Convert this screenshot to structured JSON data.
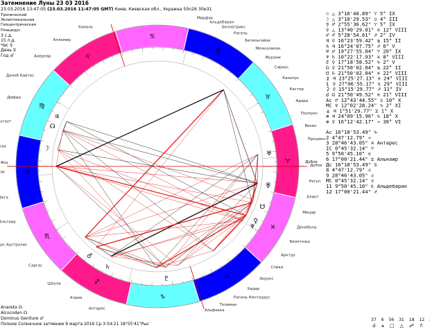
{
  "header": {
    "title": "Затемнение Луны 23 03 2016",
    "datetime_local": "23.03.2016  13:47:05",
    "datetime_gmt": "(23.03.2016  11:47:05 GMT)",
    "location": "Киев, Киевская обл., Украина 50n26  30e31"
  },
  "settings": {
    "lines": [
      "Тропический",
      "Эклиптикальная",
      "Геоцентрическая",
      "Плацидус",
      "3 с.д.",
      "15 л.д.",
      "Час ♀",
      "День ♀",
      "Год ♂"
    ]
  },
  "chart": {
    "sign_colors": [
      "#ff1a8c",
      "#66ffff",
      "#0000ff",
      "#ff66ff",
      "#ff1a8c",
      "#66ffff",
      "#0000ff",
      "#ff66ff",
      "#ff1a8c",
      "#66ffff",
      "#0000ff",
      "#ff66ff"
    ],
    "sign_glyphs": [
      "♈",
      "♉",
      "♊",
      "♋",
      "♌",
      "♍",
      "♎",
      "♏",
      "♐",
      "♑",
      "♒",
      "♓"
    ],
    "axis_left": "Асц",
    "axis_right": "Дубхе"
  },
  "stars_left": [
    "Хамаль",
    "Алламир",
    "Ахернар",
    "Денеб Кайтос",
    "Дифда",
    "Фомальгаут",
    "Анкаа",
    "Пикок",
    "Вега",
    "Альтаир",
    "Каус Аустралис",
    "Саргас",
    "Шаула",
    "Атрия",
    "Антарес"
  ],
  "stars_top": [
    "Мирфак",
    "Альдебаран",
    "Беллатрикс",
    "Ригель",
    "Бетельгейзе",
    "Менкалинан",
    "Мурзим",
    "Сириус",
    "Канопус",
    "Кастор",
    "Адара",
    "Поллукс",
    "Везен",
    "Процион"
  ],
  "stars_right": [
    "Дубхе",
    "Регул",
    "Алиот",
    "Мицар",
    "Денебола",
    "Бенетнаш",
    "Арктур",
    "Спика",
    "Акрукс",
    "Хадар",
    "Ригиль Кентаурус",
    "Толиман",
    "Альфекка"
  ],
  "planets_table": [
    {
      "g": "☉",
      "r": "△",
      "pos": "3°16'40.89\"",
      "s": "♈",
      "d": "5°",
      "h": "IX"
    },
    {
      "g": "☽",
      "r": "△",
      "pos": "3°10'29.53\"",
      "s": "♎",
      "d": "4°",
      "h": "III"
    },
    {
      "g": "☿",
      "r": "♂",
      "pos": "2°55'36.62\"",
      "s": "♈",
      "d": "5°",
      "h": "IX"
    },
    {
      "g": "♀",
      "r": "△",
      "pos": "13°40'29.01\"",
      "s": "♓",
      "d": "12°",
      "h": "VIII"
    },
    {
      "g": "♂",
      "r": "♂",
      "pos": "5°28'54.61\"",
      "s": "♐",
      "d": "2°",
      "h": "IV"
    },
    {
      "g": "♃",
      "r": "♀",
      "pos": "16°23'59.42\"",
      "s": "♍",
      "d": "15°",
      "h": "II"
    },
    {
      "g": "♄",
      "r": "♃",
      "pos": "16°24'07.75\"",
      "s": "♐",
      "d": "6°",
      "h": "V"
    },
    {
      "g": "♅",
      "r": "♂",
      "pos": "19°27'55.04\"",
      "s": "♈",
      "d": "20°",
      "h": "IX"
    },
    {
      "g": "♆",
      "r": "♄",
      "pos": "10°22'17.93\"",
      "s": "♓",
      "d": "8°",
      "h": "VIII"
    },
    {
      "g": "♇",
      "r": "♀",
      "pos": "17°18'58.52\"",
      "s": "♑",
      "d": "2°",
      "h": "V"
    },
    {
      "g": "☊",
      "r": "♀",
      "pos": "21°50'02.04\"",
      "s": "♍",
      "d": "22°",
      "h": "II"
    },
    {
      "g": "☋",
      "r": "♄",
      "pos": "21°50'02.04\"",
      "s": "♓",
      "d": "22°",
      "h": "VIII"
    },
    {
      "g": "⚷",
      "r": "♃",
      "pos": "23°25'27.13\"",
      "s": "♓",
      "d": "24°",
      "h": "VIII"
    },
    {
      "g": "⚸",
      "r": "♀",
      "pos": "27°06'55.17\"",
      "s": "♏",
      "d": "29°",
      "h": "VIII"
    },
    {
      "g": "⚳",
      "r": "♀",
      "pos": "15°15'29.77\"",
      "s": "♐",
      "d": "11°",
      "h": "IV"
    },
    {
      "g": "☌",
      "r": "☊",
      "pos": "21°50'49.52\"",
      "s": "♓",
      "d": "21°",
      "h": "VIII"
    },
    {
      "g": "Ас",
      "r": "♂",
      "pos": "12°43'44.55\"",
      "s": "♎",
      "d": "10°",
      "h": "X"
    },
    {
      "g": "МС",
      "r": "♀",
      "pos": "12°02'28.24\"",
      "s": "♑",
      "d": "2°",
      "h": "XI"
    },
    {
      "g": "⚶",
      "r": "♃",
      "pos": "1°51'29.77\"",
      "s": "♊",
      "d": "1°",
      "h": "X"
    },
    {
      "g": "⊕",
      "r": "♃",
      "pos": "24°09'15.96\"",
      "s": "♑",
      "d": "18°",
      "h": "X"
    },
    {
      "g": "⊗",
      "r": "♀",
      "pos": "16°12'42.17\"",
      "s": "♒",
      "d": "30°",
      "h": "VI"
    }
  ],
  "stars_table": [
    {
      "g": "Ас",
      "pos": "16°18'53.49\"",
      "s": "♑",
      "name": ""
    },
    {
      "g": "2",
      "pos": "4°47'12.79\"",
      "s": "♒",
      "name": ""
    },
    {
      "g": "3",
      "pos": "28°46'43.05\"",
      "s": "♓",
      "name": "Антарес"
    },
    {
      "g": "IC",
      "pos": "0°45'32.14\"",
      "s": "♈",
      "name": ""
    },
    {
      "g": "5",
      "pos": "9°50'45.10\"",
      "s": "♉",
      "name": ""
    },
    {
      "g": "6",
      "pos": "17°00'21.44\"",
      "s": "♊",
      "name": "Альнаир"
    },
    {
      "g": "Дс",
      "pos": "16°18'53.49\"",
      "s": "♋",
      "name": ""
    },
    {
      "g": "8",
      "pos": "4°47'12.79\"",
      "s": "♌",
      "name": ""
    },
    {
      "g": "9",
      "pos": "28°46'43.05\"",
      "s": "♌",
      "name": ""
    },
    {
      "g": "МС",
      "pos": "0°45'32.14\"",
      "s": "♎",
      "name": ""
    },
    {
      "g": "11",
      "pos": "9°50'45.10\"",
      "s": "♏",
      "name": "Альдебаран"
    },
    {
      "g": "12",
      "pos": "17°00'21.44\"",
      "s": "♐",
      "name": ""
    }
  ],
  "footer": {
    "anareta": "Anareta",
    "alcocoden": "Alcocoden",
    "dominus": "Dominus Geniture",
    "eclipse": "Полное Солнечное затмение  9 марта 2016 Ср  3:54:21 18°55'41\"Рыс",
    "counts": [
      "37",
      "6",
      "56",
      "31",
      "18",
      "12",
      "37"
    ]
  }
}
